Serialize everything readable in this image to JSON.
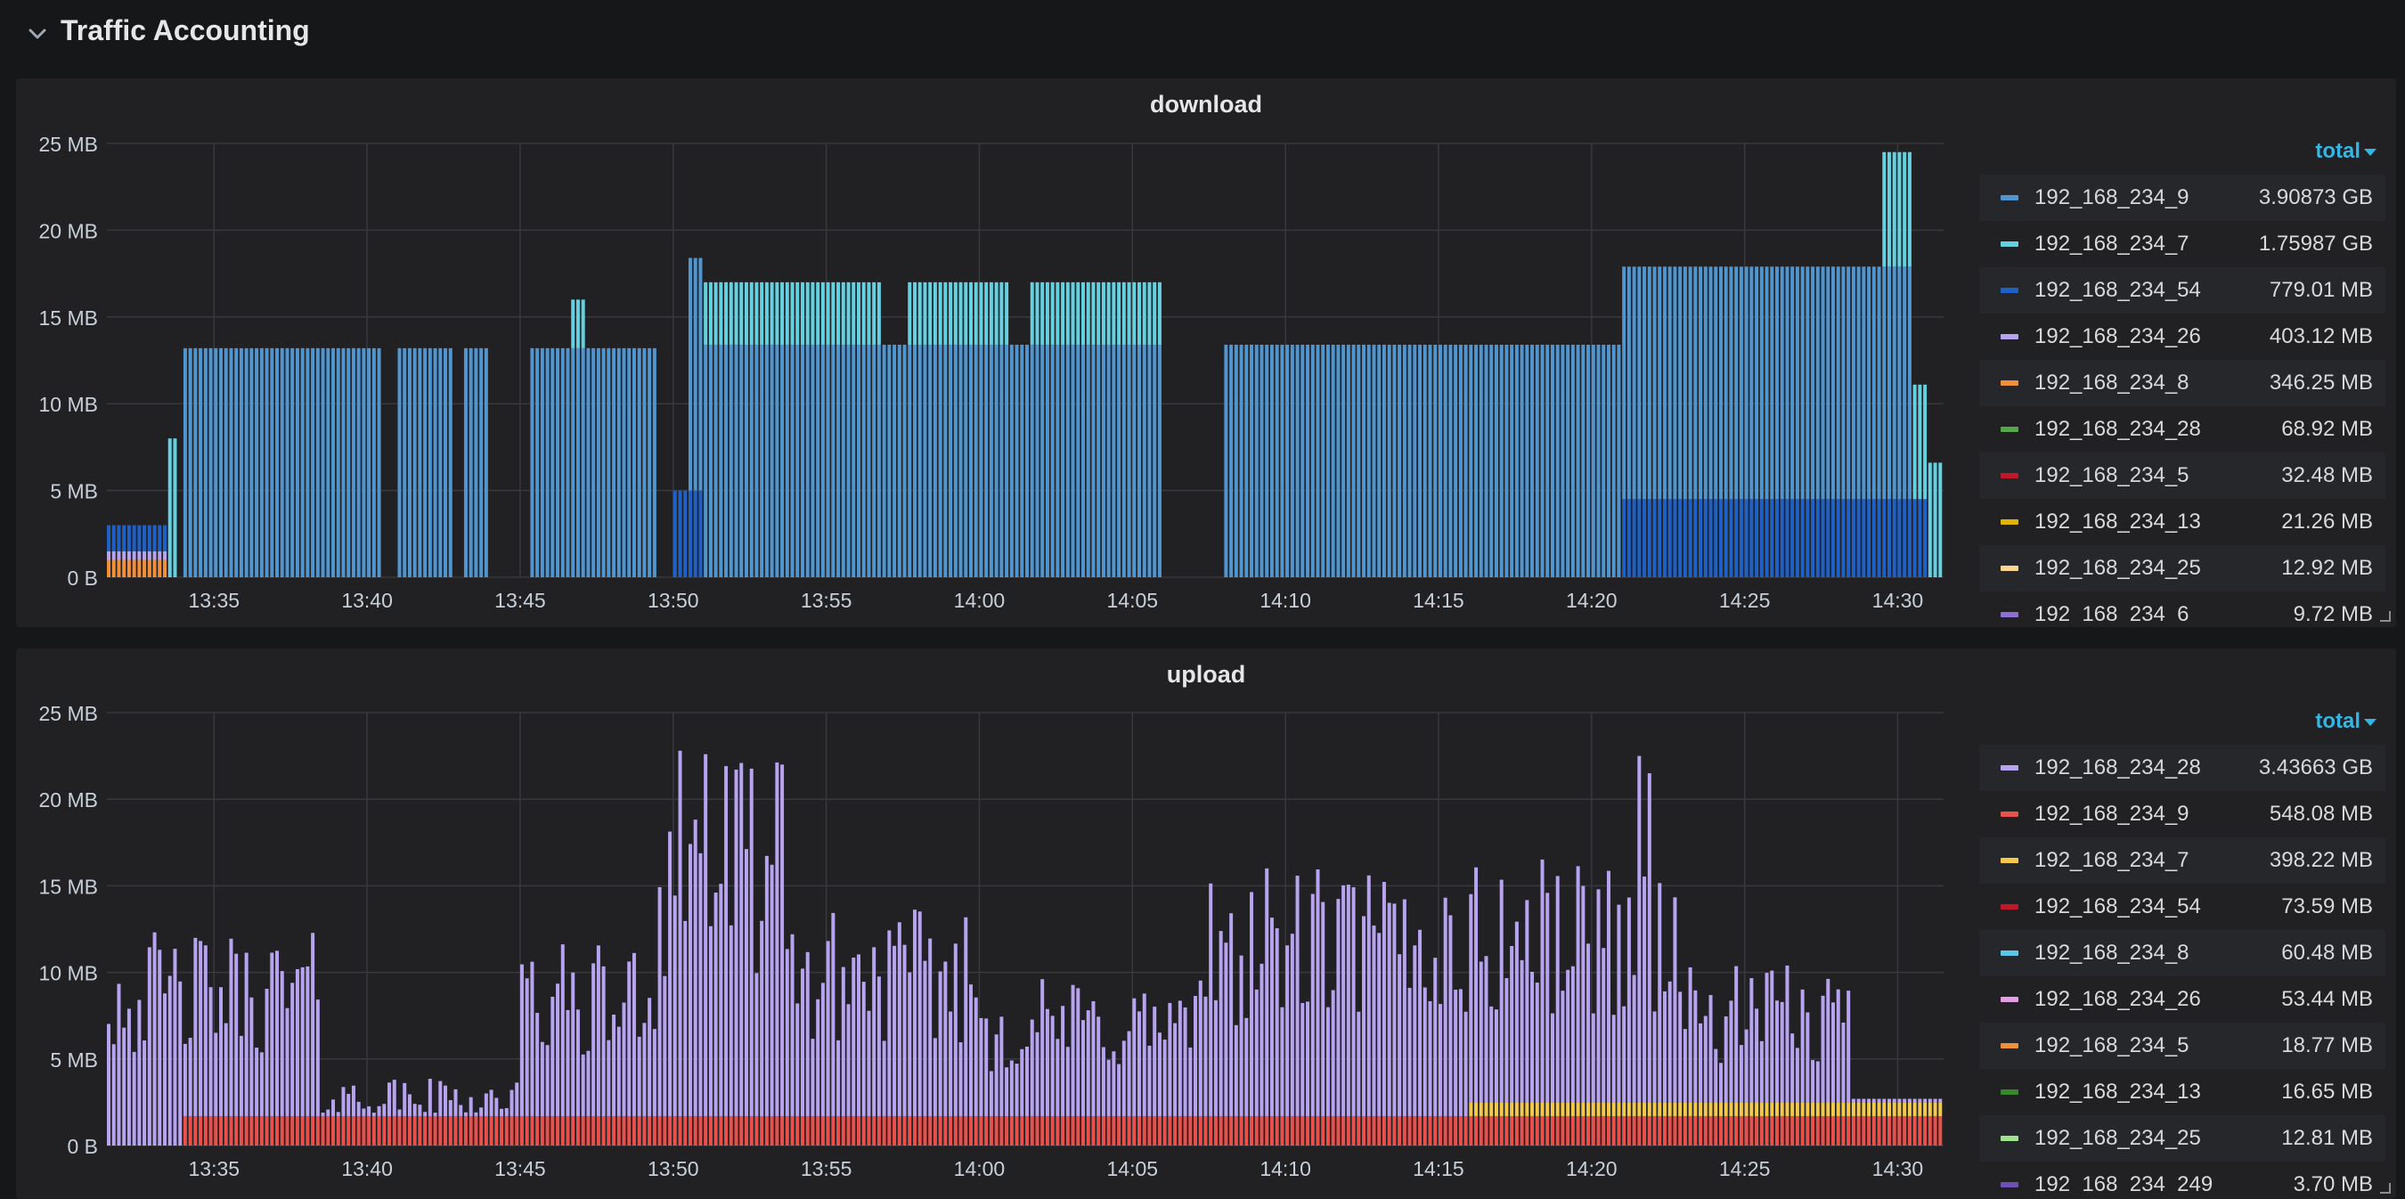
{
  "row": {
    "title": "Traffic Accounting"
  },
  "x_ticks": [
    "13:35",
    "13:40",
    "13:45",
    "13:50",
    "13:55",
    "14:00",
    "14:05",
    "14:10",
    "14:15",
    "14:20",
    "14:25",
    "14:30"
  ],
  "panels": {
    "download": {
      "title": "download",
      "legend_sort": "total",
      "legend": [
        {
          "name": "192_168_234_9",
          "value": "3.90873 GB",
          "color": "#5195ce"
        },
        {
          "name": "192_168_234_7",
          "value": "1.75987 GB",
          "color": "#64d0e0"
        },
        {
          "name": "192_168_234_54",
          "value": "779.01 MB",
          "color": "#1f60c4"
        },
        {
          "name": "192_168_234_26",
          "value": "403.12 MB",
          "color": "#b7a3f0"
        },
        {
          "name": "192_168_234_8",
          "value": "346.25 MB",
          "color": "#f2903a"
        },
        {
          "name": "192_168_234_28",
          "value": "68.92 MB",
          "color": "#56a64b"
        },
        {
          "name": "192_168_234_5",
          "value": "32.48 MB",
          "color": "#c4162a"
        },
        {
          "name": "192_168_234_13",
          "value": "21.26 MB",
          "color": "#e0b400"
        },
        {
          "name": "192_168_234_25",
          "value": "12.92 MB",
          "color": "#fcd38f"
        },
        {
          "name": "192_168_234_6",
          "value": "9.72 MB",
          "color": "#8f6fd1"
        }
      ]
    },
    "upload": {
      "title": "upload",
      "legend_sort": "total",
      "legend": [
        {
          "name": "192_168_234_28",
          "value": "3.43663 GB",
          "color": "#b7a3f0"
        },
        {
          "name": "192_168_234_9",
          "value": "548.08 MB",
          "color": "#e8514b"
        },
        {
          "name": "192_168_234_7",
          "value": "398.22 MB",
          "color": "#f2c94c"
        },
        {
          "name": "192_168_234_54",
          "value": "73.59 MB",
          "color": "#c4162a"
        },
        {
          "name": "192_168_234_8",
          "value": "60.48 MB",
          "color": "#5ac8e8"
        },
        {
          "name": "192_168_234_26",
          "value": "53.44 MB",
          "color": "#e59ee6"
        },
        {
          "name": "192_168_234_5",
          "value": "18.77 MB",
          "color": "#f2903a"
        },
        {
          "name": "192_168_234_13",
          "value": "16.65 MB",
          "color": "#37872d"
        },
        {
          "name": "192_168_234_25",
          "value": "12.81 MB",
          "color": "#a0e38e"
        },
        {
          "name": "192_168_234_249",
          "value": "3.70 MB",
          "color": "#6e4fb5"
        }
      ]
    }
  },
  "chart_data": [
    {
      "type": "bar",
      "title": "download",
      "y_unit": "MB",
      "ylim": [
        0,
        25
      ],
      "y_ticks": [
        "0 B",
        "5 MB",
        "10 MB",
        "15 MB",
        "20 MB",
        "25 MB"
      ],
      "x_range": [
        "13:31:30",
        "14:31:30"
      ],
      "grid": true,
      "legend_placement": "right",
      "stacked": true,
      "segments": [
        {
          "series": "192_168_234_8",
          "from": "13:31:30",
          "to": "13:33:30",
          "value": 1.0
        },
        {
          "series": "192_168_234_26",
          "from": "13:31:30",
          "to": "13:33:30",
          "value": 0.5
        },
        {
          "series": "192_168_234_54",
          "from": "13:31:30",
          "to": "13:33:30",
          "value": 1.5
        },
        {
          "series": "192_168_234_7",
          "from": "13:33:30",
          "to": "13:33:45",
          "value": 8.0
        },
        {
          "series": "192_168_234_9",
          "from": "13:34:00",
          "to": "13:40:30",
          "value": 13.2
        },
        {
          "series": "192_168_234_9",
          "from": "13:41:00",
          "to": "13:42:50",
          "value": 13.2
        },
        {
          "series": "192_168_234_9",
          "from": "13:43:10",
          "to": "13:44:00",
          "value": 13.2
        },
        {
          "series": "192_168_234_9",
          "from": "13:45:20",
          "to": "13:49:30",
          "value": 13.2
        },
        {
          "series": "192_168_234_7",
          "from": "13:46:40",
          "to": "13:47:10",
          "value": 2.8
        },
        {
          "series": "192_168_234_9",
          "from": "13:50:30",
          "to": "14:06:00",
          "value": 13.4
        },
        {
          "series": "192_168_234_7",
          "from": "13:51:00",
          "to": "13:56:50",
          "value": 3.6
        },
        {
          "series": "192_168_234_7",
          "from": "13:57:40",
          "to": "14:01:00",
          "value": 3.6
        },
        {
          "series": "192_168_234_7",
          "from": "14:01:40",
          "to": "14:06:00",
          "value": 3.6
        },
        {
          "series": "192_168_234_9",
          "from": "14:08:00",
          "to": "14:30:30",
          "value": 13.4
        },
        {
          "series": "192_168_234_7",
          "from": "14:29:30",
          "to": "14:31:30",
          "value": 6.6
        },
        {
          "series": "192_168_234_54",
          "from": "13:50:00",
          "to": "13:51:00",
          "value": 5.0
        },
        {
          "series": "192_168_234_54",
          "from": "14:21:00",
          "to": "14:31:00",
          "value": 4.5
        }
      ]
    },
    {
      "type": "bar",
      "title": "upload",
      "y_unit": "MB",
      "ylim": [
        0,
        25
      ],
      "y_ticks": [
        "0 B",
        "5 MB",
        "10 MB",
        "15 MB",
        "20 MB",
        "25 MB"
      ],
      "x_range": [
        "13:31:30",
        "14:31:30"
      ],
      "grid": true,
      "legend_placement": "right",
      "stacked": true,
      "base_segments": [
        {
          "series": "192_168_234_9",
          "from": "13:34:00",
          "to": "14:31:30",
          "value": 1.7
        },
        {
          "series": "192_168_234_7",
          "from": "14:16:00",
          "to": "14:31:30",
          "value": 0.8
        }
      ],
      "series_28_profile": [
        {
          "from": "13:31:30",
          "to": "13:38:30",
          "value": 9.5
        },
        {
          "from": "13:38:30",
          "to": "13:45:00",
          "value": 3.0
        },
        {
          "from": "13:45:00",
          "to": "13:49:30",
          "value": 9.0
        },
        {
          "from": "13:49:30",
          "to": "13:53:30",
          "value": 17.5
        },
        {
          "from": "13:53:30",
          "to": "14:00:00",
          "value": 10.5
        },
        {
          "from": "14:00:00",
          "to": "14:07:30",
          "value": 7.5
        },
        {
          "from": "14:07:30",
          "to": "14:17:00",
          "value": 12.5
        },
        {
          "from": "14:17:00",
          "to": "14:23:00",
          "value": 13.0
        },
        {
          "from": "14:23:00",
          "to": "14:28:30",
          "value": 8.0
        },
        {
          "from": "14:28:30",
          "to": "14:31:30",
          "value": 0.3
        }
      ],
      "peaks": [
        {
          "time": "13:50:10",
          "value": 22.8
        },
        {
          "time": "13:51:00",
          "value": 22.6
        },
        {
          "time": "13:53:30",
          "value": 22.0
        },
        {
          "time": "14:21:30",
          "value": 22.5
        },
        {
          "time": "14:21:50",
          "value": 21.5
        }
      ]
    }
  ]
}
